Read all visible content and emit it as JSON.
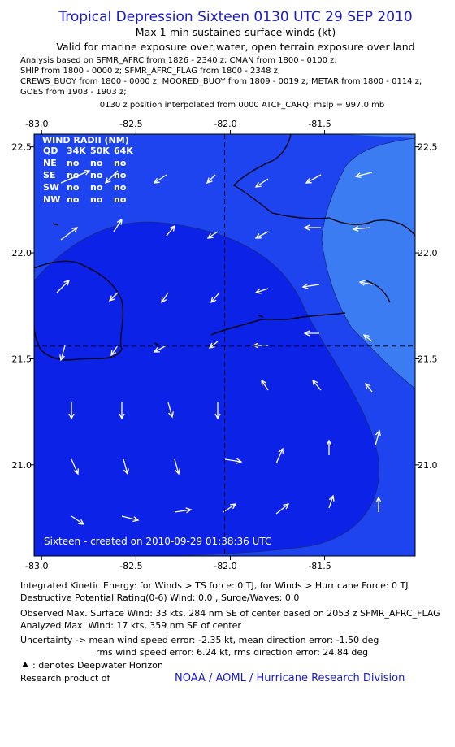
{
  "header": {
    "title": "Tropical Depression Sixteen 0130 UTC 29 SEP 2010",
    "subtitle": "Max 1-min sustained surface winds (kt)",
    "validity": "Valid for marine exposure over water, open terrain exposure over land",
    "analysis_lines": [
      "Analysis based on SFMR_AFRC from 1826 - 2340 z; CMAN from 1800 - 0100 z;",
      "SHIP from 1800 - 0000 z; SFMR_AFRC_FLAG from 1800 - 2348 z;",
      "CREWS_BUOY from 1800 - 0000 z; MOORED_BUOY from 1809 - 0019 z; METAR from 1800 - 0114 z;",
      "GOES from 1903 - 1903 z;"
    ],
    "position_note": "0130 z position interpolated from 0000 ATCF_CARQ; mslp = 997.0 mb"
  },
  "map": {
    "xlim": [
      -83.04,
      -81.02
    ],
    "ylim": [
      20.57,
      22.56
    ],
    "xticks": [
      {
        "value": -83,
        "label": "-83.0"
      },
      {
        "value": -82.5,
        "label": "-82.5"
      },
      {
        "value": -82,
        "label": "-82.0"
      },
      {
        "value": -81.5,
        "label": "-81.5"
      }
    ],
    "yticks": [
      22.5,
      {
        "value": 22,
        "label": "22.0"
      },
      21.5,
      {
        "value": 21,
        "label": "21.0"
      }
    ],
    "center": {
      "lon": -82.03,
      "lat": 21.56
    },
    "wind_radii": {
      "title": "WIND RADII (NM)",
      "header": [
        "QD",
        "34K",
        "50K",
        "64K"
      ],
      "rows": [
        [
          "NE",
          "no",
          "no",
          "no"
        ],
        [
          "SE",
          "no",
          "no",
          "no"
        ],
        [
          "SW",
          "no",
          "no",
          "no"
        ],
        [
          "NW",
          "no",
          "no",
          "no"
        ]
      ]
    },
    "credit": "Sixteen - created on 2010-09-29 01:38:36 UTC"
  },
  "footer": {
    "lines": [
      "Integrated Kinetic Energy:  for Winds > TS force: 0 TJ,  for Winds > Hurricane Force: 0 TJ",
      "Destructive Potential Rating(0-6)   Wind: 0.0 , Surge/Waves: 0.0",
      "Observed Max. Surface Wind: 33 kts, 284 nm SE of center based on 2053 z SFMR_AFRC_FLAG",
      "Analyzed Max. Wind: 17 kts, 359 nm SE of center",
      "Uncertainty -> mean wind speed error:  -2.35 kt,   mean direction error:  -1.50 deg",
      "rms wind speed error:  6.24 kt,   rms direction error: 24.84 deg"
    ],
    "legend": ": denotes Deepwater Horizon",
    "research": "Research product of",
    "org": "NOAA / AOML / Hurricane Research Division"
  }
}
